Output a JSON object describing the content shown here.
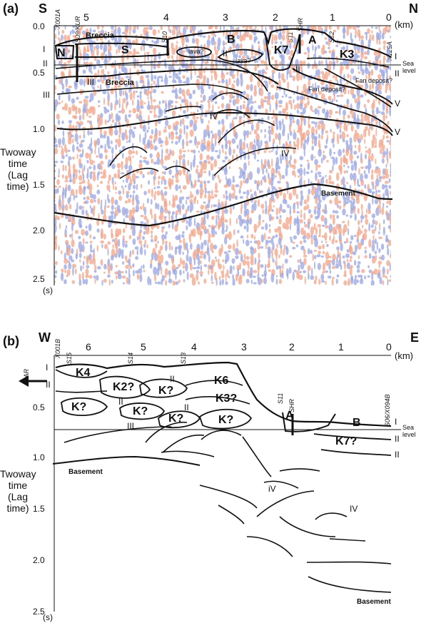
{
  "panel_a": {
    "label": "(a)",
    "dir_left": "S",
    "dir_right": "N",
    "km_ticks": [
      "5",
      "4",
      "3",
      "2",
      "1",
      "0"
    ],
    "km_unit": "(km)",
    "time_ticks": [
      "0.0",
      "0.5",
      "1.0",
      "1.5",
      "2.0",
      "2.5"
    ],
    "time_unit": "(s)",
    "wells": [
      "X001A",
      "S09/KUR",
      "S10",
      "S11",
      "SHR",
      "S12",
      "X125A"
    ],
    "units": [
      "N",
      "S",
      "B",
      "K7",
      "A",
      "K3"
    ],
    "notes": [
      "Breccia",
      "Breccia",
      "lava?",
      "lava?",
      "Fan deposit?",
      "Fan deposit?",
      "Basement"
    ],
    "sequences": [
      "I",
      "II",
      "III",
      "IV",
      "I",
      "II",
      "V",
      "V",
      "IV",
      "II",
      "III",
      "II"
    ],
    "sea_level": "Sea\nlevel"
  },
  "panel_b": {
    "label": "(b)",
    "dir_left": "W",
    "dir_right": "E",
    "km_ticks": [
      "6",
      "5",
      "4",
      "3",
      "2",
      "1",
      "0"
    ],
    "km_unit": "(km)",
    "time_ticks": [
      "0.5",
      "1.0",
      "1.5",
      "2.0",
      "2.5"
    ],
    "time_unit": "(s)",
    "wells": [
      "X001B",
      "S15",
      "S14",
      "S13",
      "S11",
      "SHR",
      "S06/X094B"
    ],
    "har": "HAR",
    "units": [
      "K4",
      "K2?",
      "K?",
      "K6",
      "K3?",
      "K?",
      "K?",
      "K?",
      "K?",
      "A",
      "B",
      "K7?"
    ],
    "sequences": [
      "I",
      "II",
      "II",
      "II",
      "III",
      "II",
      "I",
      "II",
      "II",
      "iV",
      "IV"
    ],
    "notes": [
      "Basement",
      "Basement"
    ],
    "sea_level": "Sea\nlevel"
  },
  "y_axis_label": "Twoway time\n(Lag time)",
  "colors": {
    "wiggle_red": "#f2a48a",
    "wiggle_blue": "#9aa6e0",
    "horizon": "#111111"
  }
}
